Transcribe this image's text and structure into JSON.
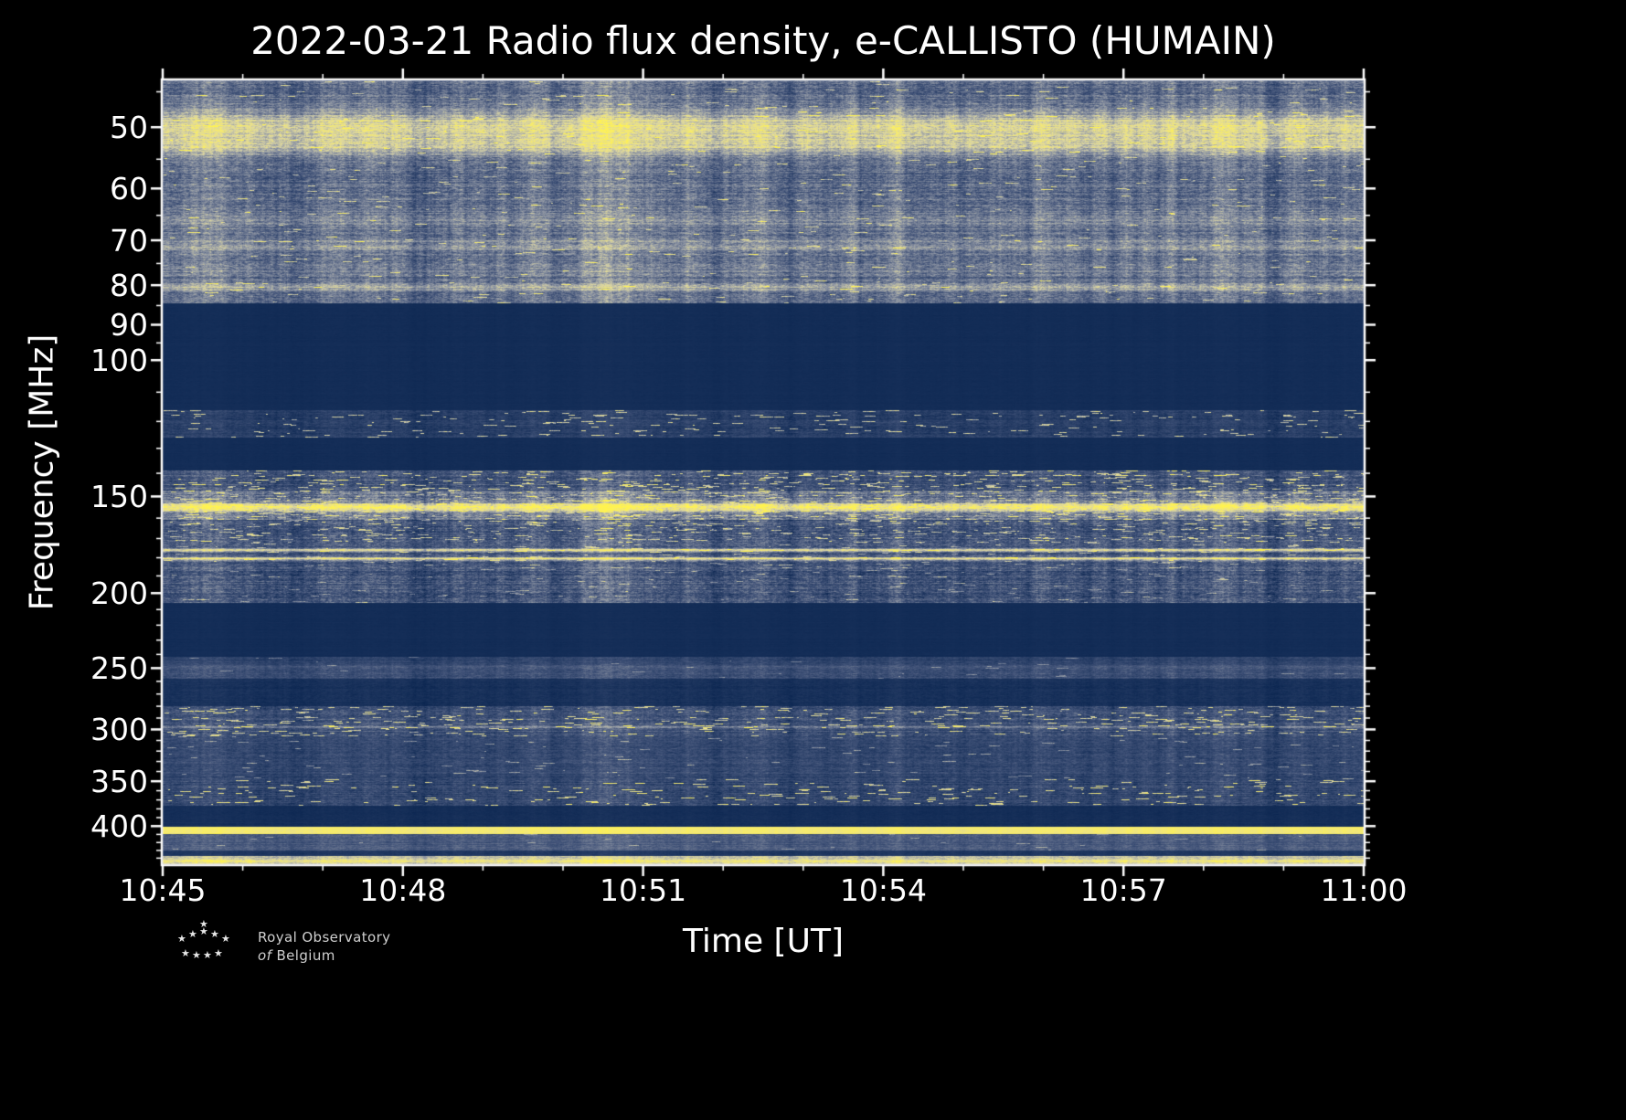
{
  "title": "2022-03-21 Radio flux density, e-CALLISTO (HUMAIN)",
  "xlabel": "Time [UT]",
  "ylabel": "Frequency [MHz]",
  "logo": {
    "line1": "Royal Observatory",
    "line2_prefix": "of",
    "line2": "Belgium"
  },
  "chart_data": {
    "type": "heatmap",
    "subtype": "radio-spectrogram",
    "title": "2022-03-21 Radio flux density, e-CALLISTO (HUMAIN)",
    "date": "2022-03-21",
    "network": "e-CALLISTO",
    "station": "HUMAIN",
    "xlabel": "Time [UT]",
    "ylabel": "Frequency [MHz]",
    "x_axis": {
      "start": "10:45",
      "end": "11:00",
      "duration_min": 15,
      "tick_labels": [
        "10:45",
        "10:48",
        "10:51",
        "10:54",
        "10:57",
        "11:00"
      ],
      "tick_minutes": [
        0,
        3,
        6,
        9,
        12,
        15
      ],
      "minor_tick_minutes": [
        1,
        2,
        4,
        5,
        7,
        8,
        10,
        11,
        13,
        14
      ]
    },
    "y_axis": {
      "scale": "log",
      "inverted": true,
      "min_mhz": 43.5,
      "max_mhz": 448,
      "tick_labels": [
        "50",
        "60",
        "70",
        "80",
        "90",
        "100",
        "150",
        "200",
        "250",
        "300",
        "350",
        "400"
      ],
      "tick_values": [
        50,
        60,
        70,
        80,
        90,
        100,
        150,
        200,
        250,
        300,
        350,
        400
      ],
      "minor_tick_values": [
        45,
        55,
        65,
        75,
        85,
        95,
        110,
        120,
        130,
        140,
        160,
        170,
        180,
        190,
        210,
        220,
        230,
        240,
        260,
        270,
        280,
        290,
        310,
        320,
        330,
        340,
        360,
        370,
        380,
        390,
        410,
        420,
        430,
        440
      ]
    },
    "colormap": {
      "stops": [
        [
          0.0,
          "#0a2550"
        ],
        [
          0.3,
          "#44557a"
        ],
        [
          0.55,
          "#9097a4"
        ],
        [
          0.75,
          "#d8d3a4"
        ],
        [
          0.9,
          "#f3e878"
        ],
        [
          1.0,
          "#fff34f"
        ]
      ]
    },
    "bands": [
      {
        "f0": 43.5,
        "f1": 84.5,
        "mean": 0.4,
        "amp": 0.2,
        "speckle": 0.015,
        "speckle_boost": 0.45,
        "lines": [
          {
            "f": 50,
            "w": 2.2,
            "boost": 0.4
          },
          {
            "f": 53,
            "w": 1.5,
            "boost": 0.28
          },
          {
            "f": 66,
            "w": 1.6,
            "boost": 0.12
          },
          {
            "f": 71,
            "w": 1.8,
            "boost": 0.14
          },
          {
            "f": 76,
            "w": 1.3,
            "boost": 0.1
          },
          {
            "f": 80.5,
            "w": 1.0,
            "boost": 0.22
          }
        ]
      },
      {
        "f0": 84.5,
        "f1": 116,
        "mean": 0.05,
        "amp": 0.015,
        "speckle": 0,
        "speckle_boost": 0
      },
      {
        "f0": 116,
        "f1": 126,
        "mean": 0.17,
        "amp": 0.1,
        "speckle": 0.05,
        "speckle_boost": 0.65
      },
      {
        "f0": 126,
        "f1": 139,
        "mean": 0.05,
        "amp": 0.015,
        "speckle": 0,
        "speckle_boost": 0
      },
      {
        "f0": 139,
        "f1": 148,
        "mean": 0.3,
        "amp": 0.18,
        "speckle": 0.1,
        "speckle_boost": 0.6
      },
      {
        "f0": 148,
        "f1": 161,
        "mean": 0.44,
        "amp": 0.22,
        "speckle": 0.12,
        "speckle_boost": 0.4,
        "lines": [
          {
            "f": 155,
            "w": 2.2,
            "boost": 0.45
          }
        ]
      },
      {
        "f0": 161,
        "f1": 172,
        "mean": 0.3,
        "amp": 0.2,
        "speckle": 0.09,
        "speckle_boost": 0.5
      },
      {
        "f0": 172,
        "f1": 184,
        "mean": 0.32,
        "amp": 0.18,
        "speckle": 0.04,
        "speckle_boost": 0.4,
        "lines": [
          {
            "f": 176,
            "w": 0.8,
            "boost": 0.5
          },
          {
            "f": 180.5,
            "w": 0.8,
            "boost": 0.55
          }
        ]
      },
      {
        "f0": 184,
        "f1": 206,
        "mean": 0.3,
        "amp": 0.2,
        "speckle": 0.02,
        "speckle_boost": 0.35
      },
      {
        "f0": 206,
        "f1": 242,
        "mean": 0.05,
        "amp": 0.015,
        "speckle": 0,
        "speckle_boost": 0
      },
      {
        "f0": 242,
        "f1": 250,
        "mean": 0.2,
        "amp": 0.1,
        "speckle": 0.005,
        "speckle_boost": 0.3,
        "lines": [
          {
            "f": 249,
            "w": 1.2,
            "boost": 0.12
          }
        ]
      },
      {
        "f0": 250,
        "f1": 258,
        "mean": 0.26,
        "amp": 0.12,
        "speckle": 0.01,
        "speckle_boost": 0.3
      },
      {
        "f0": 258,
        "f1": 280,
        "mean": 0.08,
        "amp": 0.05,
        "speckle": 0,
        "speckle_boost": 0
      },
      {
        "f0": 280,
        "f1": 306,
        "mean": 0.28,
        "amp": 0.16,
        "speckle": 0.08,
        "speckle_boost": 0.6,
        "lines": [
          {
            "f": 298,
            "w": 1.2,
            "boost": 0.2
          }
        ]
      },
      {
        "f0": 306,
        "f1": 348,
        "mean": 0.22,
        "amp": 0.12,
        "speckle": 0.015,
        "speckle_boost": 0.4
      },
      {
        "f0": 348,
        "f1": 376,
        "mean": 0.22,
        "amp": 0.14,
        "speckle": 0.05,
        "speckle_boost": 0.7
      },
      {
        "f0": 376,
        "f1": 401,
        "mean": 0.06,
        "amp": 0.03,
        "speckle": 0,
        "speckle_boost": 0
      },
      {
        "f0": 401,
        "f1": 410,
        "mean": 0.92,
        "amp": 0.06,
        "speckle": 0,
        "speckle_boost": 0
      },
      {
        "f0": 410,
        "f1": 430,
        "mean": 0.32,
        "amp": 0.1,
        "speckle": 0.01,
        "speckle_boost": 0.3
      },
      {
        "f0": 430,
        "f1": 437,
        "mean": 0.12,
        "amp": 0.05,
        "speckle": 0,
        "speckle_boost": 0
      },
      {
        "f0": 437,
        "f1": 448,
        "mean": 0.7,
        "amp": 0.15,
        "speckle": 0,
        "speckle_boost": 0,
        "lines": [
          {
            "f": 444,
            "w": 2.0,
            "boost": 0.22
          }
        ]
      }
    ]
  }
}
